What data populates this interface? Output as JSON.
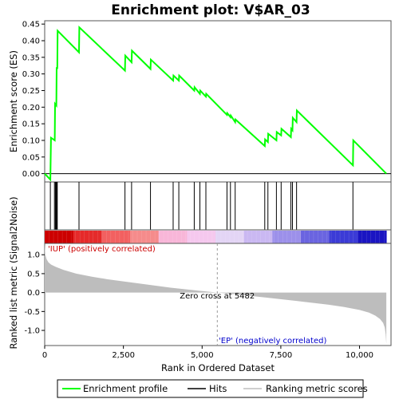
{
  "chart_data": {
    "type": "line",
    "title": "Enrichment plot: V$AR_03",
    "top_panel": {
      "ylabel": "Enrichment score (ES)",
      "ylim": [
        -0.025,
        0.46
      ],
      "yticks": [
        "0.00",
        "0.05",
        "0.10",
        "0.15",
        "0.20",
        "0.25",
        "0.30",
        "0.35",
        "0.40",
        "0.45"
      ],
      "line_color": "#00ff00",
      "es_curve": {
        "x": [
          0,
          180,
          200,
          320,
          330,
          370,
          380,
          400,
          410,
          1090,
          1100,
          2550,
          2560,
          2760,
          2770,
          3360,
          3370,
          4080,
          4090,
          4260,
          4270,
          4750,
          4760,
          4930,
          4940,
          5120,
          5130,
          5790,
          5800,
          5900,
          5910,
          6050,
          6060,
          6990,
          7000,
          7090,
          7100,
          7360,
          7370,
          7510,
          7520,
          7820,
          7830,
          7870,
          7880,
          8000,
          8010,
          9790,
          9800,
          10850
        ],
        "y": [
          0.0,
          -0.018,
          0.108,
          0.1,
          0.21,
          0.205,
          0.32,
          0.315,
          0.43,
          0.365,
          0.44,
          0.31,
          0.355,
          0.335,
          0.37,
          0.315,
          0.343,
          0.28,
          0.295,
          0.28,
          0.295,
          0.25,
          0.26,
          0.24,
          0.25,
          0.232,
          0.24,
          0.177,
          0.182,
          0.17,
          0.175,
          0.155,
          0.163,
          0.083,
          0.103,
          0.095,
          0.12,
          0.1,
          0.125,
          0.115,
          0.135,
          0.11,
          0.135,
          0.13,
          0.168,
          0.155,
          0.19,
          0.025,
          0.1,
          0.0
        ]
      }
    },
    "hits": [
      180,
      310,
      340,
      360,
      380,
      400,
      1090,
      2550,
      2760,
      3360,
      4080,
      4260,
      4750,
      4930,
      5120,
      5790,
      5900,
      6050,
      6990,
      7090,
      7360,
      7510,
      7820,
      7870,
      8000,
      9790
    ],
    "bottom_panel": {
      "ylabel": "Ranked list metric (Signal2Noise)",
      "ylim": [
        -1.4,
        1.3
      ],
      "yticks": [
        "1.0",
        "0.5",
        "0.0",
        "-0.5",
        "-1.0"
      ],
      "metric_curve": {
        "x": [
          0,
          20,
          60,
          120,
          200,
          350,
          600,
          1000,
          1500,
          2000,
          3000,
          4000,
          5000,
          5482,
          6000,
          7000,
          8000,
          9000,
          9500,
          10000,
          10300,
          10500,
          10650,
          10750,
          10800,
          10830,
          10850
        ],
        "y": [
          1.3,
          1.0,
          0.88,
          0.8,
          0.74,
          0.68,
          0.6,
          0.5,
          0.42,
          0.35,
          0.24,
          0.13,
          0.04,
          0.0,
          -0.04,
          -0.13,
          -0.22,
          -0.32,
          -0.38,
          -0.46,
          -0.53,
          -0.61,
          -0.7,
          -0.8,
          -0.92,
          -1.1,
          -1.35
        ]
      },
      "zero_cross": 5482,
      "zero_cross_label": "Zero cross at 5482",
      "pos_label": "'IUP' (positively correlated)",
      "neg_label": "'EP' (negatively correlated)",
      "pos_color": "#cc0000",
      "neg_color": "#0000cc"
    },
    "xlabel": "Rank in Ordered Dataset",
    "xlim": [
      0,
      11000
    ],
    "xticks": [
      0,
      2500,
      5000,
      7500,
      10000
    ],
    "xtick_labels": [
      "0",
      "2,500",
      "5,000",
      "7,500",
      "10,000"
    ],
    "n_genes": 10850,
    "heatmap_colors": [
      "#cc0000",
      "#e52a2a",
      "#f26060",
      "#f58b8b",
      "#f8b6d8",
      "#f5c8ee",
      "#e3d5f5",
      "#cab8f2",
      "#9c90ea",
      "#6a64e0",
      "#3b3bd6",
      "#1a14c2"
    ],
    "legend": [
      "Enrichment profile",
      "Hits",
      "Ranking metric scores"
    ]
  }
}
